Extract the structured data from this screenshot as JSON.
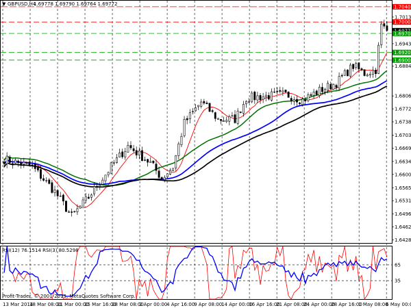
{
  "header": {
    "symbol_label": "GBPUSD,H4",
    "ohlc_text": "1.69778 1.69790 1.69764 1.69772"
  },
  "rsi_panel": {
    "label": "RSI(12) 76.1514  RSI(3) 80.5298"
  },
  "footer": {
    "copyright": "Profit-Trader, © 2001-2013, MetaQuotes Software Corp."
  },
  "colors": {
    "candle": "#000000",
    "ma_red": "#ff0000",
    "ma_green": "#007000",
    "ma_blue": "#0000ff",
    "ma_black": "#000000",
    "level_red": "#ff0000",
    "level_green": "#00a000",
    "rsi_red": "#ff0000",
    "rsi_blue": "#0000ff"
  },
  "chart_data": {
    "type": "candlestick",
    "symbol": "GBPUSD",
    "timeframe": "H4",
    "price_axis_ticks": [
      "1.70130",
      "1.69430",
      "1.68840",
      "1.68060",
      "1.67720",
      "1.67380",
      "1.67030",
      "1.66690",
      "1.66340",
      "1.66000",
      "1.65650",
      "1.65310",
      "1.64960",
      "1.64620",
      "1.64280"
    ],
    "price_range": [
      1.642,
      1.7056
    ],
    "horizontal_levels": [
      {
        "price": 1.704,
        "label": "1.70400",
        "color": "red",
        "style": "solid"
      },
      {
        "price": 1.7,
        "label": "1.70000",
        "color": "red",
        "style": "dashed"
      },
      {
        "price": 1.69772,
        "label": "1.69772",
        "color": "black",
        "style": "current"
      },
      {
        "price": 1.697,
        "label": "1.69700",
        "color": "green",
        "style": "dashed"
      },
      {
        "price": 1.692,
        "label": "1.69200",
        "color": "green",
        "style": "dashed"
      },
      {
        "price": 1.69,
        "label": "1.69000",
        "color": "green",
        "style": "dashed"
      }
    ],
    "time_axis_labels": [
      "13 Mar 2014",
      "18 Mar 08:00",
      "21 Mar 00:00",
      "25 Mar 16:00",
      "28 Mar 08:00",
      "2 Apr 00:00",
      "4 Apr 16:00",
      "9 Apr 08:00",
      "14 Apr 00:00",
      "16 Apr 16:00",
      "21 Apr 08:00",
      "24 Apr 00:00",
      "28 Apr 16:00",
      "1 May 08:00",
      "6 May 00:00"
    ],
    "trend_anchors": [
      {
        "i": 0,
        "p": 1.664
      },
      {
        "i": 10,
        "p": 1.662
      },
      {
        "i": 18,
        "p": 1.6555
      },
      {
        "i": 24,
        "p": 1.649
      },
      {
        "i": 30,
        "p": 1.654
      },
      {
        "i": 38,
        "p": 1.662
      },
      {
        "i": 44,
        "p": 1.6675
      },
      {
        "i": 52,
        "p": 1.663
      },
      {
        "i": 56,
        "p": 1.659
      },
      {
        "i": 60,
        "p": 1.662
      },
      {
        "i": 64,
        "p": 1.6735
      },
      {
        "i": 70,
        "p": 1.679
      },
      {
        "i": 76,
        "p": 1.6745
      },
      {
        "i": 82,
        "p": 1.6745
      },
      {
        "i": 86,
        "p": 1.68
      },
      {
        "i": 92,
        "p": 1.6805
      },
      {
        "i": 100,
        "p": 1.681
      },
      {
        "i": 106,
        "p": 1.6795
      },
      {
        "i": 112,
        "p": 1.682
      },
      {
        "i": 118,
        "p": 1.684
      },
      {
        "i": 124,
        "p": 1.6885
      },
      {
        "i": 128,
        "p": 1.6865
      },
      {
        "i": 132,
        "p": 1.6875
      },
      {
        "i": 134,
        "p": 1.699
      },
      {
        "i": 136,
        "p": 1.6978
      }
    ],
    "rsi_levels": [
      65,
      35
    ],
    "rsi_values": {
      "rsi12": 76.1514,
      "rsi3": 80.5298
    }
  }
}
